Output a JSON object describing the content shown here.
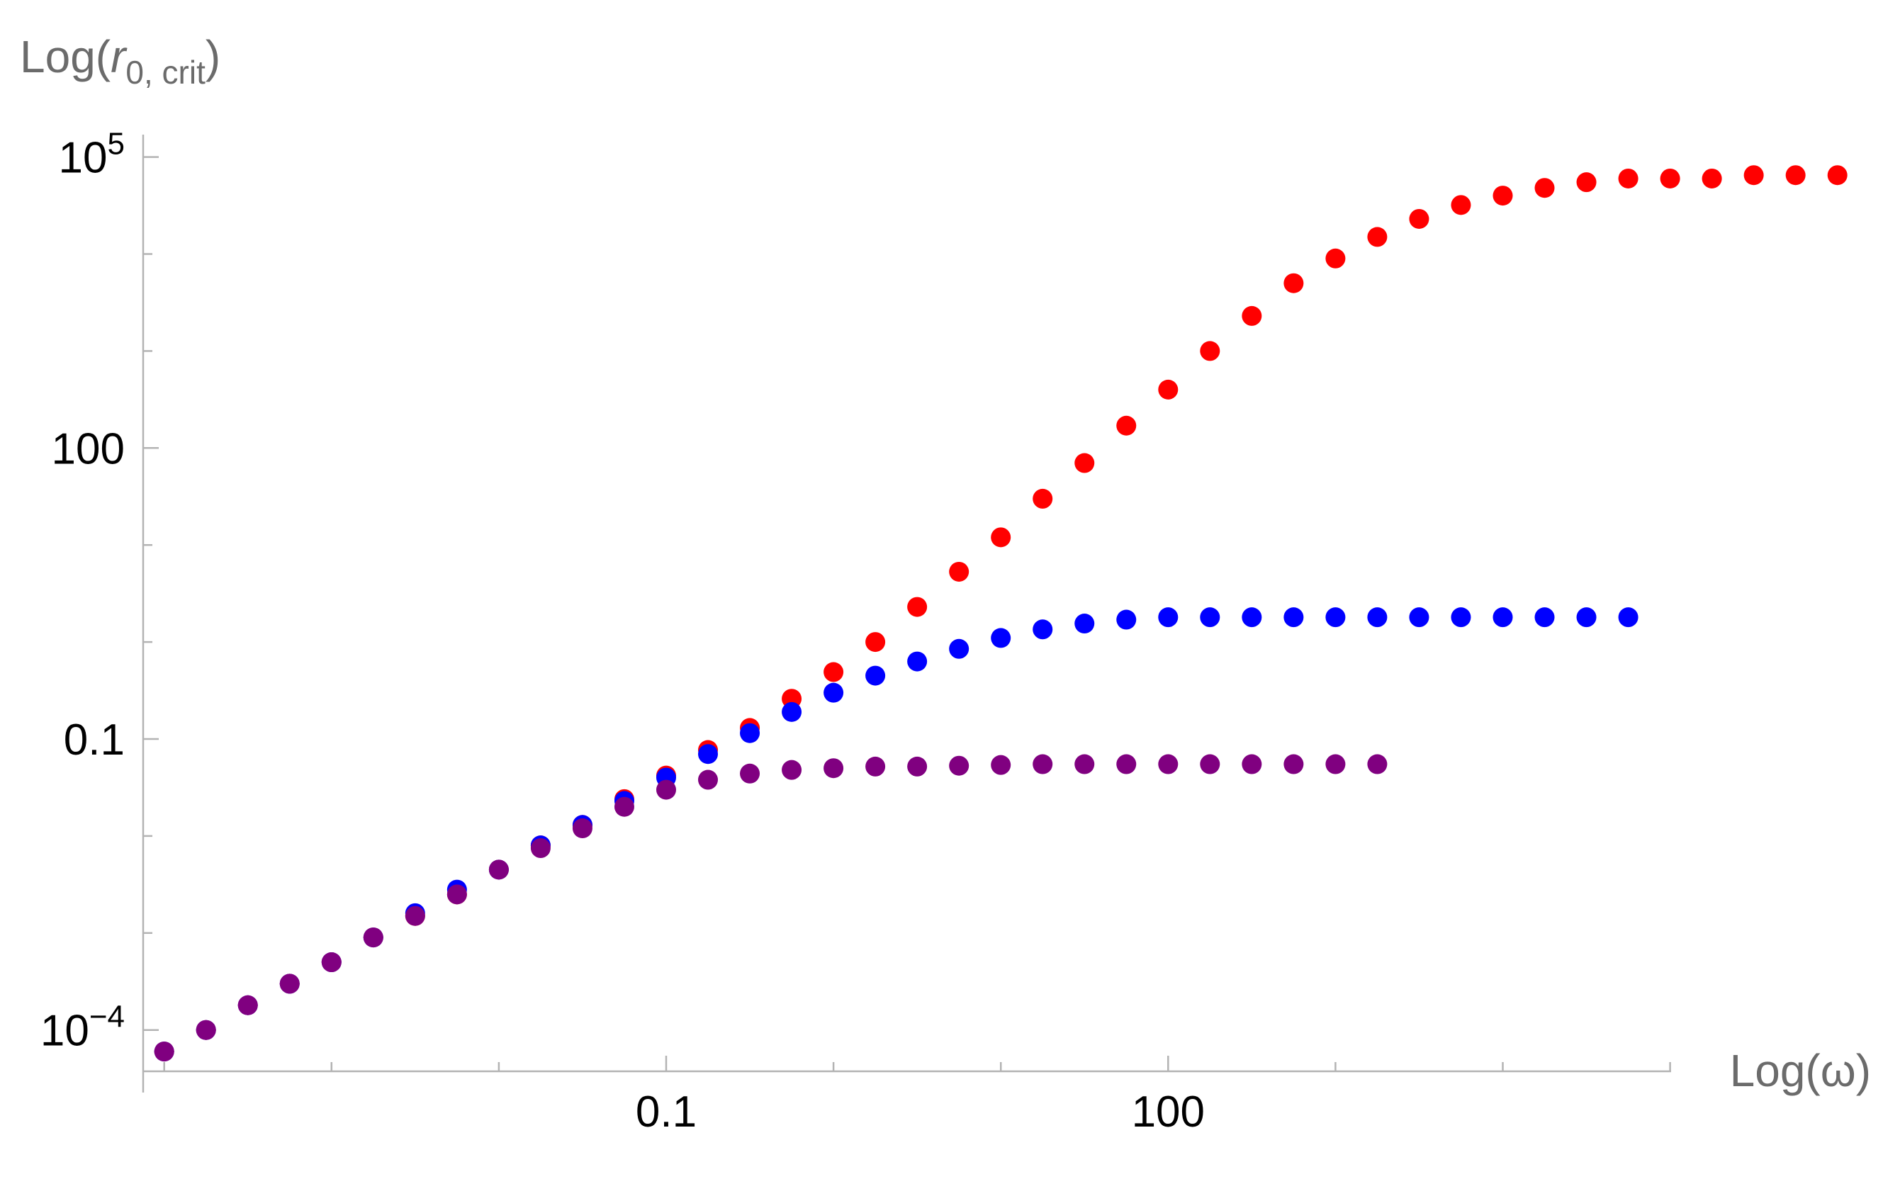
{
  "chart_data": {
    "type": "scatter",
    "x_scale": "log",
    "y_scale": "log",
    "xlabel": "Log(ω)",
    "ylabel_parts": {
      "prefix": "Log(",
      "var": "r",
      "sub": "0, crit",
      "suffix": ")"
    },
    "x_ticks": [
      {
        "value": 0.1,
        "label": "0.1"
      },
      {
        "value": 100,
        "label": "100"
      }
    ],
    "y_ticks": [
      {
        "value": 0.0001,
        "base": "10",
        "exp": "−4"
      },
      {
        "value": 0.1,
        "label": "0.1"
      },
      {
        "value": 100,
        "label": "100"
      },
      {
        "value": 100000,
        "base": "10",
        "exp": "5"
      }
    ],
    "xlim": [
      5e-05,
      8000000
    ],
    "ylim": [
      3e-05,
      200000
    ],
    "grid": false,
    "series": [
      {
        "color": "#ff0000",
        "points": [
          [
            0.0001,
            6e-05
          ],
          [
            0.0001778,
            0.0001
          ],
          [
            0.0003162,
            0.00018
          ],
          [
            0.0005623,
            0.0003
          ],
          [
            0.001,
            0.0005
          ],
          [
            0.001778,
            0.0009
          ],
          [
            0.003162,
            0.0015
          ],
          [
            0.005623,
            0.0025
          ],
          [
            0.01,
            0.0045
          ],
          [
            0.01778,
            0.008
          ],
          [
            0.03162,
            0.013
          ],
          [
            0.05623,
            0.024
          ],
          [
            0.1,
            0.042
          ],
          [
            0.1778,
            0.077
          ],
          [
            0.3162,
            0.13
          ],
          [
            0.5623,
            0.26
          ],
          [
            1,
            0.49
          ],
          [
            1.778,
            1.0
          ],
          [
            3.162,
            2.3
          ],
          [
            5.623,
            5.3
          ],
          [
            10,
            12
          ],
          [
            17.78,
            30
          ],
          [
            31.62,
            70
          ],
          [
            56.23,
            170
          ],
          [
            100,
            400
          ],
          [
            177.8,
            1000
          ],
          [
            316.2,
            2300
          ],
          [
            562.3,
            5000
          ],
          [
            1000,
            9000
          ],
          [
            1778,
            15000
          ],
          [
            3162,
            23000
          ],
          [
            5623,
            32000
          ],
          [
            10000,
            40000
          ],
          [
            17780,
            48000
          ],
          [
            31620,
            55000
          ],
          [
            56230,
            60000
          ],
          [
            100000,
            60000
          ],
          [
            177800,
            60000
          ],
          [
            316200,
            65000
          ],
          [
            562300,
            65000
          ],
          [
            1000000,
            65000
          ]
        ]
      },
      {
        "color": "#0000ff",
        "points": [
          [
            0.0001,
            6e-05
          ],
          [
            0.0001778,
            0.0001
          ],
          [
            0.0003162,
            0.00018
          ],
          [
            0.0005623,
            0.0003
          ],
          [
            0.001,
            0.0005
          ],
          [
            0.001778,
            0.0009
          ],
          [
            0.003162,
            0.0016
          ],
          [
            0.005623,
            0.0028
          ],
          [
            0.01,
            0.0045
          ],
          [
            0.01778,
            0.008
          ],
          [
            0.03162,
            0.013
          ],
          [
            0.05623,
            0.023
          ],
          [
            0.1,
            0.04
          ],
          [
            0.1778,
            0.07
          ],
          [
            0.3162,
            0.115
          ],
          [
            0.5623,
            0.19
          ],
          [
            1,
            0.3
          ],
          [
            1.778,
            0.45
          ],
          [
            3.162,
            0.63
          ],
          [
            5.623,
            0.85
          ],
          [
            10,
            1.1
          ],
          [
            17.78,
            1.35
          ],
          [
            31.62,
            1.55
          ],
          [
            56.23,
            1.7
          ],
          [
            100,
            1.8
          ],
          [
            177.8,
            1.8
          ],
          [
            316.2,
            1.8
          ],
          [
            562.3,
            1.8
          ],
          [
            1000,
            1.8
          ],
          [
            1778,
            1.8
          ],
          [
            3162,
            1.8
          ],
          [
            5623,
            1.8
          ],
          [
            10000,
            1.8
          ],
          [
            17780,
            1.8
          ],
          [
            31620,
            1.8
          ],
          [
            56230,
            1.8
          ]
        ]
      },
      {
        "color": "#800080",
        "points": [
          [
            0.0001,
            6e-05
          ],
          [
            0.0001778,
            0.0001
          ],
          [
            0.0003162,
            0.00018
          ],
          [
            0.0005623,
            0.0003
          ],
          [
            0.001,
            0.0005
          ],
          [
            0.001778,
            0.0009
          ],
          [
            0.003162,
            0.0015
          ],
          [
            0.005623,
            0.0025
          ],
          [
            0.01,
            0.0045
          ],
          [
            0.01778,
            0.0075
          ],
          [
            0.03162,
            0.012
          ],
          [
            0.05623,
            0.02
          ],
          [
            0.1,
            0.03
          ],
          [
            0.1778,
            0.038
          ],
          [
            0.3162,
            0.044
          ],
          [
            0.5623,
            0.048
          ],
          [
            1,
            0.05
          ],
          [
            1.778,
            0.052
          ],
          [
            3.162,
            0.052
          ],
          [
            5.623,
            0.053
          ],
          [
            10,
            0.054
          ],
          [
            17.78,
            0.055
          ],
          [
            31.62,
            0.055
          ],
          [
            56.23,
            0.055
          ],
          [
            100,
            0.055
          ],
          [
            177.8,
            0.055
          ],
          [
            316.2,
            0.055
          ],
          [
            562.3,
            0.055
          ],
          [
            1000,
            0.055
          ],
          [
            1778,
            0.055
          ]
        ]
      }
    ]
  }
}
